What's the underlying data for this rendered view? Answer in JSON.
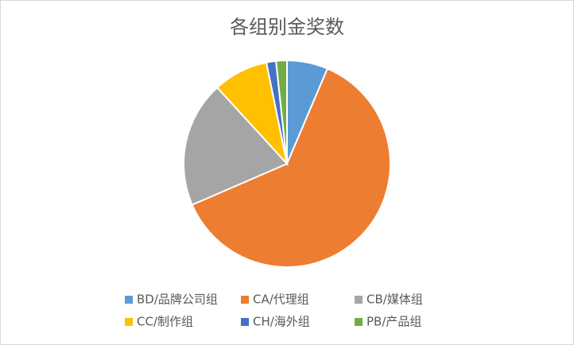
{
  "chart_data": {
    "type": "pie",
    "title": "各组别金奖数",
    "categories": [
      "BD/品牌公司组",
      "CA/代理组",
      "CB/媒体组",
      "CC/制作组",
      "CH/海外组",
      "PB/产品组"
    ],
    "values": [
      6.4,
      62.1,
      19.7,
      8.6,
      1.5,
      1.7
    ],
    "colors": [
      "#5b9bd5",
      "#ed7d31",
      "#a5a5a5",
      "#ffc000",
      "#4472c4",
      "#70ad47"
    ]
  }
}
